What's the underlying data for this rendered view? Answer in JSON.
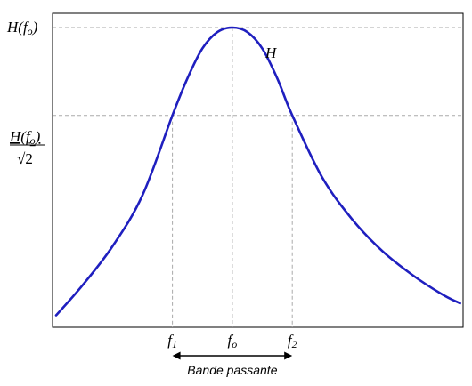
{
  "chart_data": {
    "type": "line",
    "title": "",
    "xlabel": "",
    "ylabel": "",
    "grid": false,
    "x_ticks": [
      {
        "label": "f",
        "sub": "1",
        "x": -1
      },
      {
        "label": "f",
        "sub": "o",
        "x": 0
      },
      {
        "label": "f",
        "sub": "2",
        "x": 1
      }
    ],
    "y_labels": {
      "peak": {
        "pre": "H(f",
        "sub": "o",
        "post": ")"
      },
      "half_power": {
        "num_pre": "H(f",
        "num_sub": "o",
        "num_post": ")",
        "den": "√2"
      }
    },
    "series": [
      {
        "name": "H",
        "color": "#1f1fbf",
        "x": [
          -2.94,
          -2.5,
          -2.0,
          -1.5,
          -1.0,
          -0.75,
          -0.5,
          -0.25,
          0.0,
          0.25,
          0.5,
          0.75,
          1.0,
          1.5,
          2.0,
          2.5,
          3.0,
          3.5,
          3.8
        ],
        "y": [
          0.04,
          0.14,
          0.27,
          0.44,
          0.707,
          0.83,
          0.93,
          0.985,
          1.0,
          0.985,
          0.93,
          0.83,
          0.707,
          0.5,
          0.36,
          0.255,
          0.175,
          0.11,
          0.08
        ]
      }
    ],
    "reference_lines": {
      "peak_y": 1.0,
      "half_power_y": 0.707,
      "f1_x": -1,
      "fo_x": 0,
      "f2_x": 1
    },
    "xlim": [
      -3.0,
      3.85
    ],
    "ylim": [
      0,
      1.0
    ],
    "annotations": {
      "band_label": "Bande passante",
      "curve_label": "H"
    }
  }
}
